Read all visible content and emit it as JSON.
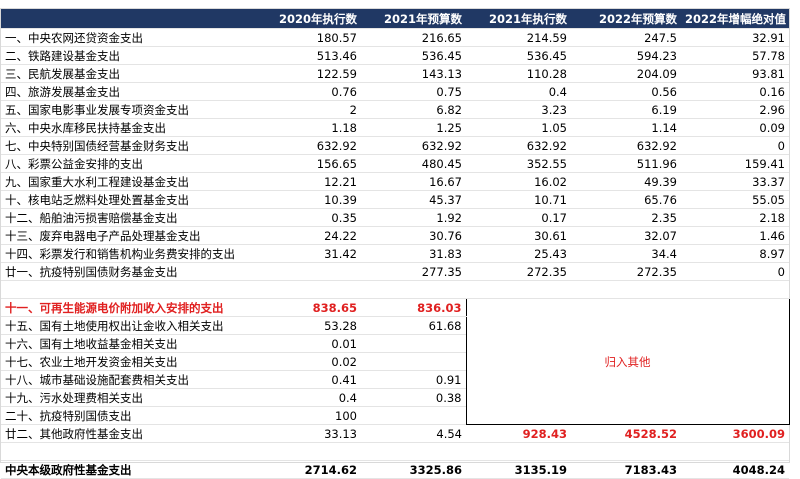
{
  "header": {
    "columns": [
      "2020年执行数",
      "2021年预算数",
      "2021年执行数",
      "2022年预算数",
      "2022年增幅绝对值"
    ]
  },
  "section1": [
    [
      "一、中央农网还贷资金支出",
      180.57,
      216.65,
      214.59,
      247.5,
      32.91
    ],
    [
      "二、铁路建设基金支出",
      513.46,
      536.45,
      536.45,
      594.23,
      57.78
    ],
    [
      "三、民航发展基金支出",
      122.59,
      143.13,
      110.28,
      204.09,
      93.81
    ],
    [
      "四、旅游发展基金支出",
      0.76,
      0.75,
      0.4,
      0.56,
      0.16
    ],
    [
      "五、国家电影事业发展专项资金支出",
      2,
      6.82,
      3.23,
      6.19,
      2.96
    ],
    [
      "六、中央水库移民扶持基金支出",
      1.18,
      1.25,
      1.05,
      1.14,
      0.09
    ],
    [
      "七、中央特别国债经营基金财务支出",
      632.92,
      632.92,
      632.92,
      632.92,
      0
    ],
    [
      "八、彩票公益金安排的支出",
      156.65,
      480.45,
      352.55,
      511.96,
      159.41
    ],
    [
      "九、国家重大水利工程建设基金支出",
      12.21,
      16.67,
      16.02,
      49.39,
      33.37
    ],
    [
      "十、核电站乏燃料处理处置基金支出",
      10.39,
      45.37,
      10.71,
      65.76,
      55.05
    ],
    [
      "十二、船舶油污损害赔偿基金支出",
      0.35,
      1.92,
      0.17,
      2.35,
      2.18
    ],
    [
      "十三、废弃电器电子产品处理基金支出",
      24.22,
      30.76,
      30.61,
      32.07,
      1.46
    ],
    [
      "十四、彩票发行和销售机构业务费安排的支出",
      31.42,
      31.83,
      25.43,
      34.4,
      8.97
    ],
    [
      "廿一、抗疫特别国债财务基金支出",
      null,
      277.35,
      272.35,
      272.35,
      0
    ]
  ],
  "section2": [
    [
      "十一、可再生能源电价附加收入安排的支出",
      838.65,
      836.03
    ],
    [
      "十五、国有土地使用权出让金收入相关支出",
      53.28,
      61.68
    ],
    [
      "十六、国有土地收益基金相关支出",
      0.01,
      null
    ],
    [
      "十七、农业土地开发资金相关支出",
      0.02,
      null
    ],
    [
      "十八、城市基础设施配套费相关支出",
      0.41,
      0.91
    ],
    [
      "十九、污水处理费相关支出",
      0.4,
      0.38
    ],
    [
      "二十、抗疫特别国债支出",
      100,
      null
    ],
    [
      "廿二、其他政府性基金支出",
      33.13,
      4.54,
      928.43,
      4528.52,
      3600.09
    ]
  ],
  "merged_note": "归入其他",
  "total": [
    "中央本级政府性基金支出",
    2714.62,
    3325.86,
    3135.19,
    7183.43,
    4048.24
  ]
}
